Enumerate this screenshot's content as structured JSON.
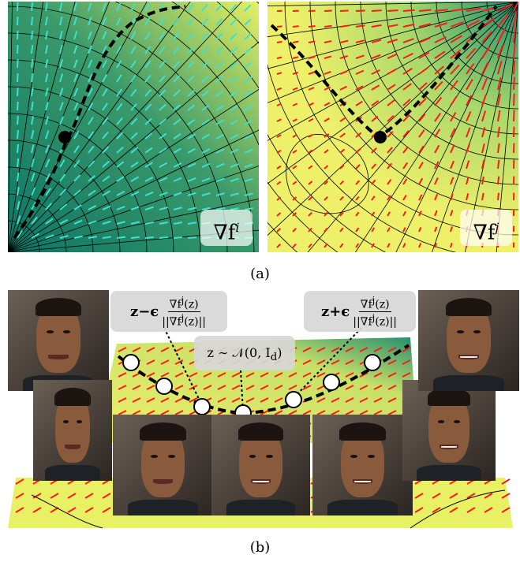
{
  "panel_a": {
    "left_label": "∇f",
    "left_label_sup": "i",
    "right_label": "∇f",
    "right_label_sup": "j",
    "left_arrow_color": "#40e0d0",
    "right_arrow_color": "#ff1a1a",
    "left_bg_colors": [
      "#0f7a6a",
      "#e8f060"
    ],
    "right_bg_colors": [
      "#1f8c70",
      "#e6f066"
    ]
  },
  "captions": {
    "a": "(a)",
    "b": "(b)"
  },
  "panel_b": {
    "bubble_left": {
      "prefix": "z−ϵ",
      "num": "∇f",
      "num_sup": "j",
      "num_suffix": "(z)",
      "den": "||∇f",
      "den_sup": "j",
      "den_suffix": "(z)||"
    },
    "bubble_right": {
      "prefix": "z+ϵ",
      "num": "∇f",
      "num_sup": "j",
      "num_suffix": "(z)",
      "den": "||∇f",
      "den_sup": "j",
      "den_suffix": "(z)||"
    },
    "bubble_mid": "z ∼ 𝒩(0, I",
    "bubble_mid_sub": "d",
    "bubble_mid_end": ")"
  }
}
